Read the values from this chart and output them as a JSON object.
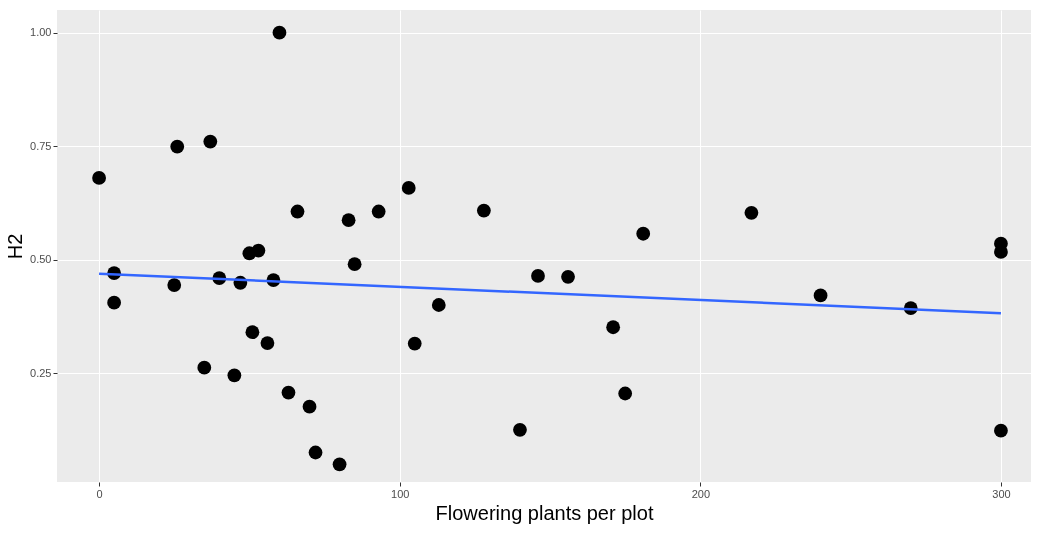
{
  "chart_data": {
    "type": "scatter",
    "xlabel": "Flowering plants per plot",
    "ylabel": "H2",
    "xlim": [
      -14,
      310
    ],
    "ylim": [
      0.01,
      1.05
    ],
    "xticks": [
      0,
      100,
      200,
      300
    ],
    "yticks": [
      0.25,
      {
        "value": 0.5,
        "label": "0.50"
      },
      0.75,
      {
        "value": 1.0,
        "label": "1.00"
      }
    ],
    "grid": true,
    "marker": "circle",
    "series": [
      {
        "type": "scatter",
        "color": "#000000",
        "x": [
          0,
          5,
          5,
          25,
          26,
          35,
          37,
          40,
          45,
          47,
          50,
          51,
          53,
          56,
          58,
          60,
          63,
          66,
          70,
          72,
          80,
          83,
          85,
          93,
          103,
          105,
          113,
          128,
          140,
          146,
          156,
          171,
          175,
          181,
          217,
          240,
          270,
          300,
          300,
          300
        ],
        "values": [
          0.68,
          0.47,
          0.405,
          0.444,
          0.749,
          0.262,
          0.76,
          0.459,
          0.245,
          0.449,
          0.514,
          0.34,
          0.52,
          0.316,
          0.455,
          1.0,
          0.207,
          0.606,
          0.176,
          0.075,
          0.049,
          0.587,
          0.49,
          0.606,
          0.658,
          0.315,
          0.4,
          0.608,
          0.125,
          0.464,
          0.462,
          0.351,
          0.205,
          0.557,
          0.603,
          0.421,
          0.393,
          0.535,
          0.517,
          0.123
        ]
      },
      {
        "type": "line",
        "marker": "none",
        "color": "#3366ff",
        "x": [
          0,
          300
        ],
        "values": [
          0.469,
          0.382
        ]
      }
    ]
  }
}
